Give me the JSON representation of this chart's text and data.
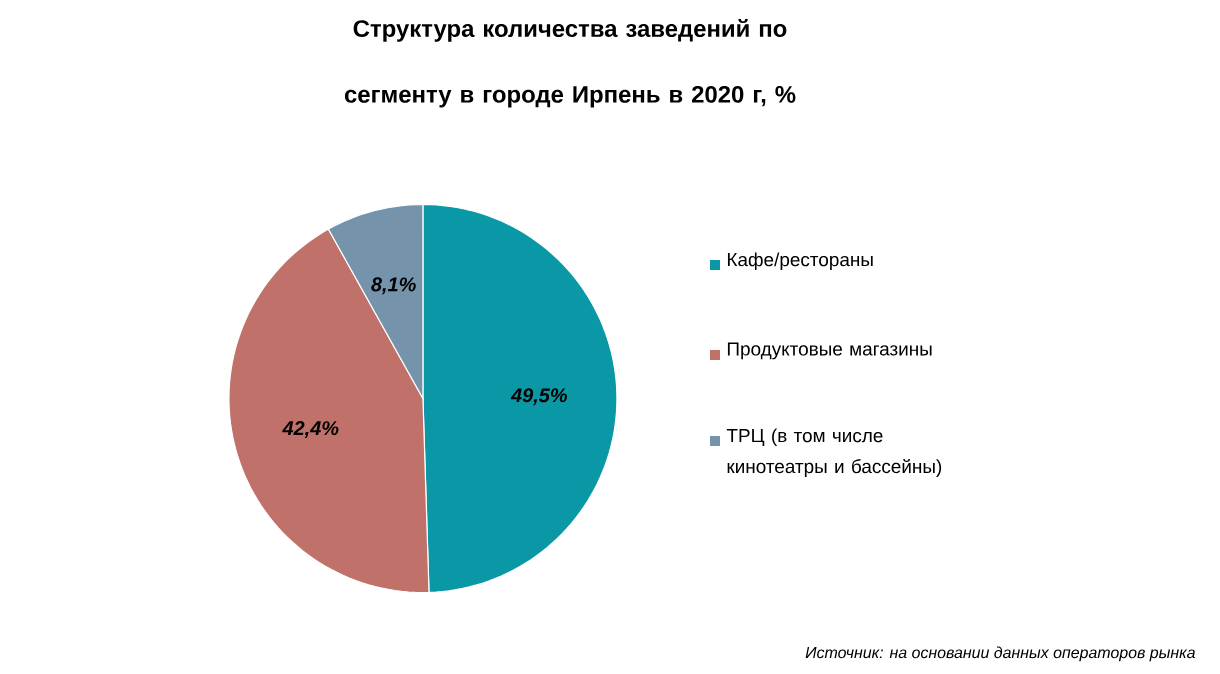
{
  "chart_data": {
    "type": "pie",
    "title": "Структура количества заведений по сегменту в городе Ирпень в 2020 г, %",
    "categories": [
      "Кафе/рестораны",
      "Продуктовые магазины",
      "ТРЦ (в том числе кинотеатры и бассейны)"
    ],
    "values": [
      49.5,
      42.4,
      8.1
    ],
    "colors": [
      "#0a97a6",
      "#c0716a",
      "#7593ab"
    ],
    "value_labels": [
      "49,5%",
      "42,4%",
      "8,1%"
    ],
    "legend": "right",
    "annotations": [
      "Источник: на основании данных операторов рынка"
    ]
  }
}
